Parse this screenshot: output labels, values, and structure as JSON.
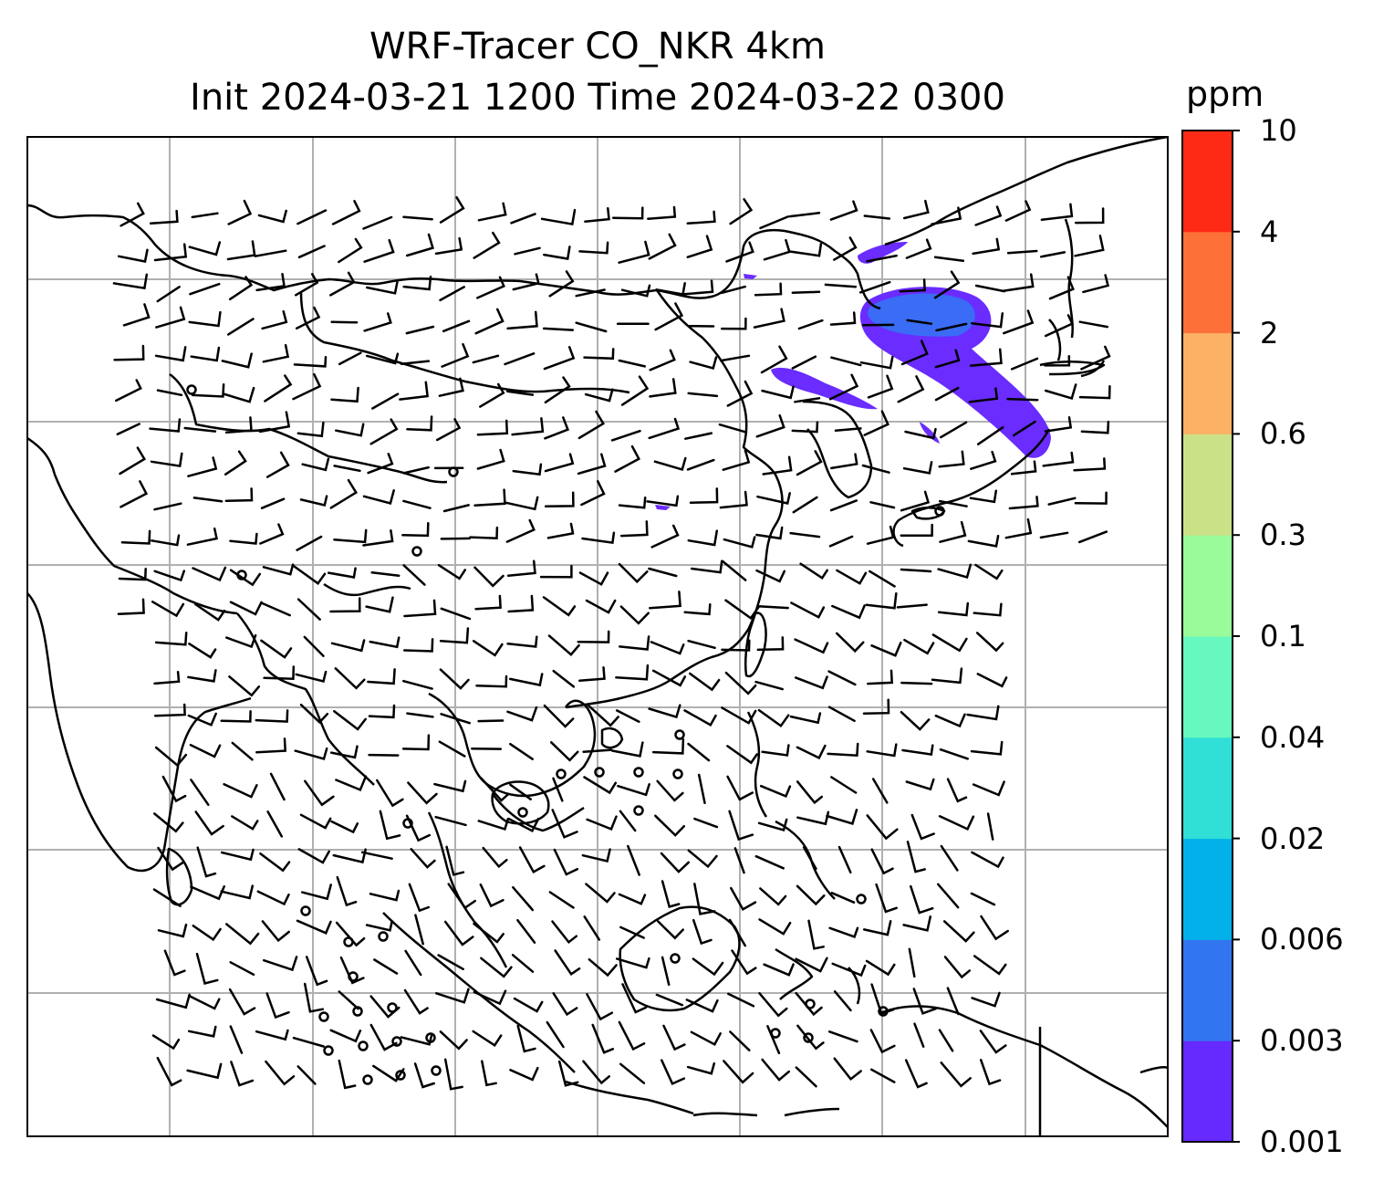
{
  "title": {
    "line1": "WRF-Tracer CO_NKR 4km",
    "line2": "Init 2024-03-21 1200 Time 2024-03-22 0300"
  },
  "colorbar": {
    "unit": "ppm",
    "levels": [
      "0.001",
      "0.003",
      "0.006",
      "0.02",
      "0.04",
      "0.1",
      "0.3",
      "0.6",
      "2",
      "4",
      "10"
    ],
    "colors": [
      "#6629fe",
      "#3275f0",
      "#03b1ea",
      "#30dfd5",
      "#66f8be",
      "#99fb99",
      "#cbe187",
      "#fcb164",
      "#fd7138",
      "#fe2a15"
    ]
  },
  "map": {
    "gridlines": "on",
    "tracer_plume_color_level": "0.001-0.003 ppm",
    "overlays": [
      "coastlines",
      "country borders",
      "wind barbs"
    ],
    "calm_marker": "circle"
  }
}
